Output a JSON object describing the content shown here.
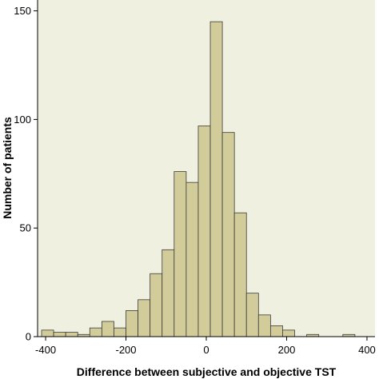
{
  "chart_data": {
    "type": "histogram",
    "xlabel": "Difference between subjective and objective TST",
    "ylabel": "Number of patients",
    "xlim": [
      -420,
      420
    ],
    "ylim": [
      0,
      155
    ],
    "x_ticks": [
      -400,
      -200,
      0,
      200,
      400
    ],
    "y_ticks": [
      0,
      50,
      100,
      150
    ],
    "x_tick_labels": [
      "-400",
      "-200",
      "0",
      "200",
      "400"
    ],
    "y_tick_labels": [
      "0",
      "50",
      "100",
      "150"
    ],
    "bin_width": 30,
    "bins": [
      {
        "start": -410,
        "end": -380,
        "value": 3
      },
      {
        "start": -380,
        "end": -350,
        "value": 2
      },
      {
        "start": -350,
        "end": -320,
        "value": 2
      },
      {
        "start": -320,
        "end": -290,
        "value": 1
      },
      {
        "start": -290,
        "end": -260,
        "value": 4
      },
      {
        "start": -260,
        "end": -230,
        "value": 7
      },
      {
        "start": -230,
        "end": -200,
        "value": 4
      },
      {
        "start": -200,
        "end": -170,
        "value": 12
      },
      {
        "start": -170,
        "end": -140,
        "value": 17
      },
      {
        "start": -140,
        "end": -110,
        "value": 29
      },
      {
        "start": -110,
        "end": -80,
        "value": 40
      },
      {
        "start": -80,
        "end": -50,
        "value": 76
      },
      {
        "start": -50,
        "end": -20,
        "value": 71
      },
      {
        "start": -20,
        "end": 10,
        "value": 97
      },
      {
        "start": 10,
        "end": 40,
        "value": 145
      },
      {
        "start": 40,
        "end": 70,
        "value": 94
      },
      {
        "start": 70,
        "end": 100,
        "value": 57
      },
      {
        "start": 100,
        "end": 130,
        "value": 20
      },
      {
        "start": 130,
        "end": 160,
        "value": 10
      },
      {
        "start": 160,
        "end": 190,
        "value": 5
      },
      {
        "start": 190,
        "end": 220,
        "value": 3
      },
      {
        "start": 220,
        "end": 250,
        "value": 0
      },
      {
        "start": 250,
        "end": 280,
        "value": 1
      },
      {
        "start": 280,
        "end": 310,
        "value": 0
      },
      {
        "start": 310,
        "end": 340,
        "value": 0
      },
      {
        "start": 340,
        "end": 370,
        "value": 1
      }
    ],
    "grid": false,
    "legend": "none"
  },
  "colors": {
    "plot_background": "#f0f0e0",
    "bar_fill": "#d2cc9a",
    "bar_stroke": "#3a3a3a",
    "axis": "#000000",
    "text": "#000000"
  }
}
